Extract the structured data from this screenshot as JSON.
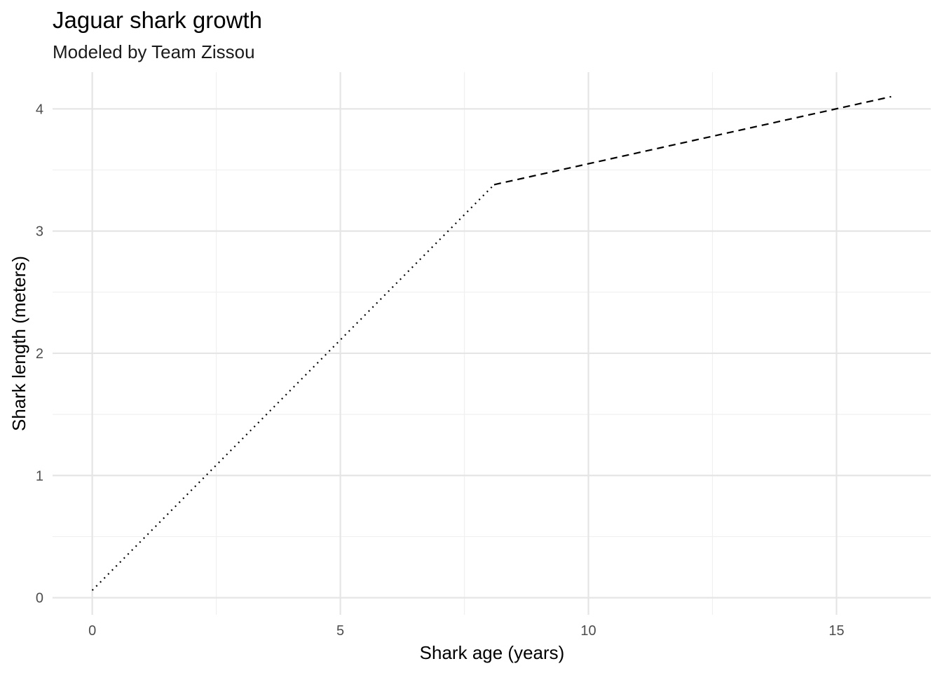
{
  "chart_data": {
    "type": "line",
    "title": "Jaguar shark growth",
    "subtitle": "Modeled by Team Zissou",
    "xlabel": "Shark age (years)",
    "ylabel": "Shark length (meters)",
    "xlim": [
      -0.8,
      16.9
    ],
    "ylim": [
      -0.14,
      4.3
    ],
    "x_ticks": [
      0,
      5,
      10,
      15
    ],
    "x_tick_labels": [
      "0",
      "5",
      "10",
      "15"
    ],
    "x_minor_ticks": [
      2.5,
      7.5,
      12.5
    ],
    "y_ticks": [
      0,
      1,
      2,
      3,
      4
    ],
    "y_tick_labels": [
      "0",
      "1",
      "2",
      "3",
      "4"
    ],
    "y_minor_ticks": [
      0.5,
      1.5,
      2.5,
      3.5
    ],
    "grid": true,
    "legend": "none",
    "series": [
      {
        "line_style": "dotted",
        "color": "#000000",
        "points": [
          [
            0,
            0.06
          ],
          [
            8.1,
            3.38
          ]
        ]
      },
      {
        "line_style": "dashed",
        "color": "#000000",
        "points": [
          [
            8.1,
            3.38
          ],
          [
            16.1,
            4.1
          ]
        ]
      }
    ],
    "grid_major_color": "#e5e5e5",
    "grid_minor_color": "#f0f0f0"
  }
}
